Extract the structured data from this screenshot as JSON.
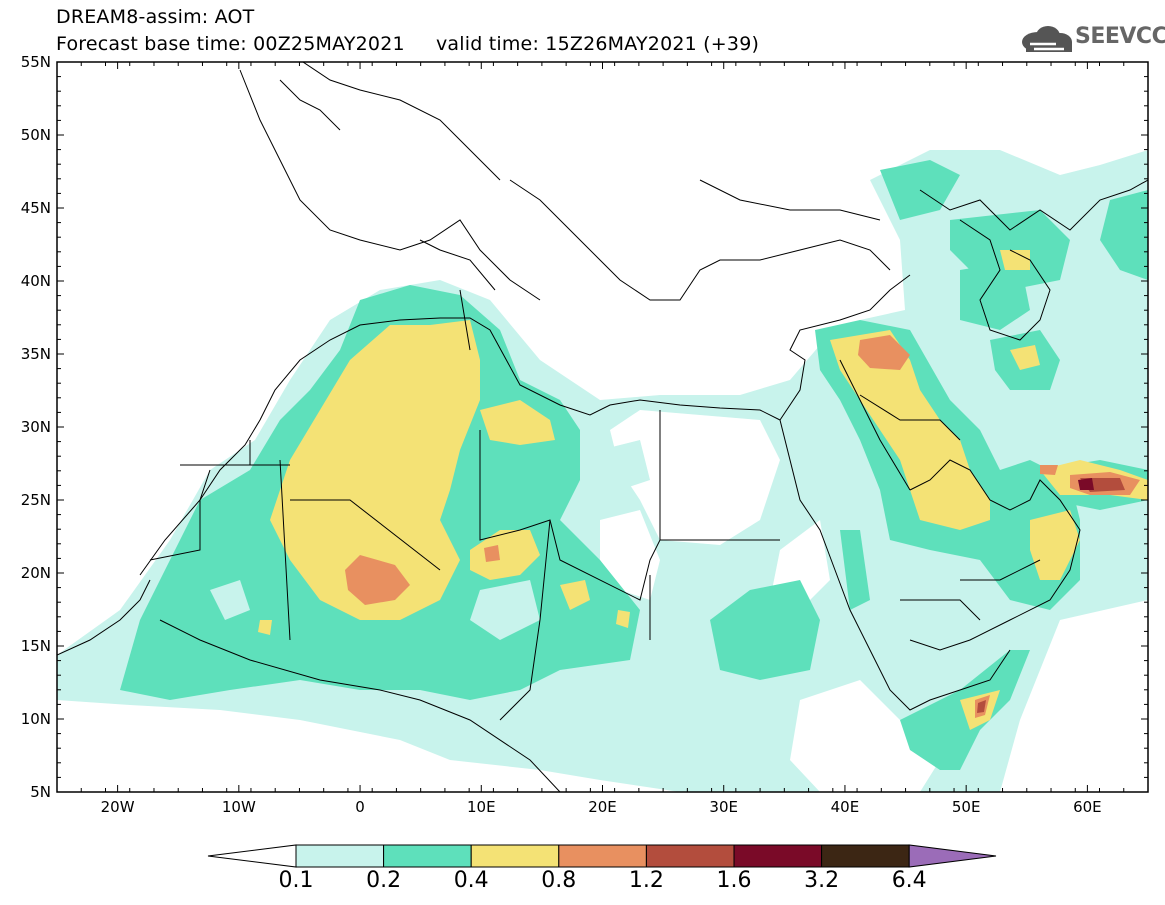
{
  "header": {
    "line1": "DREAM8-assim: AOT",
    "line2": "Forecast base time: 00Z25MAY2021     valid time: 15Z26MAY2021 (+39)",
    "logo_text": "SEEVCCC"
  },
  "map": {
    "type": "filled-contour-map",
    "lon_range": [
      -25,
      65
    ],
    "lat_range": [
      5,
      55
    ],
    "lat_ticks": [
      "55N",
      "50N",
      "45N",
      "40N",
      "35N",
      "30N",
      "25N",
      "20N",
      "15N",
      "10N",
      "5N"
    ],
    "lon_ticks": [
      "20W",
      "10W",
      "0",
      "10E",
      "20E",
      "30E",
      "40E",
      "50E",
      "60E"
    ],
    "background_color": "#ffffff",
    "border_color": "#000000"
  },
  "colorbar": {
    "labels": [
      "0.1",
      "0.2",
      "0.4",
      "0.8",
      "1.2",
      "1.6",
      "3.2",
      "6.4"
    ],
    "colors": [
      "#c8f3ec",
      "#5ee0bb",
      "#f4e275",
      "#e89060",
      "#b34d3d",
      "#7a0a28",
      "#3c2614",
      "#9b6cb8"
    ]
  }
}
